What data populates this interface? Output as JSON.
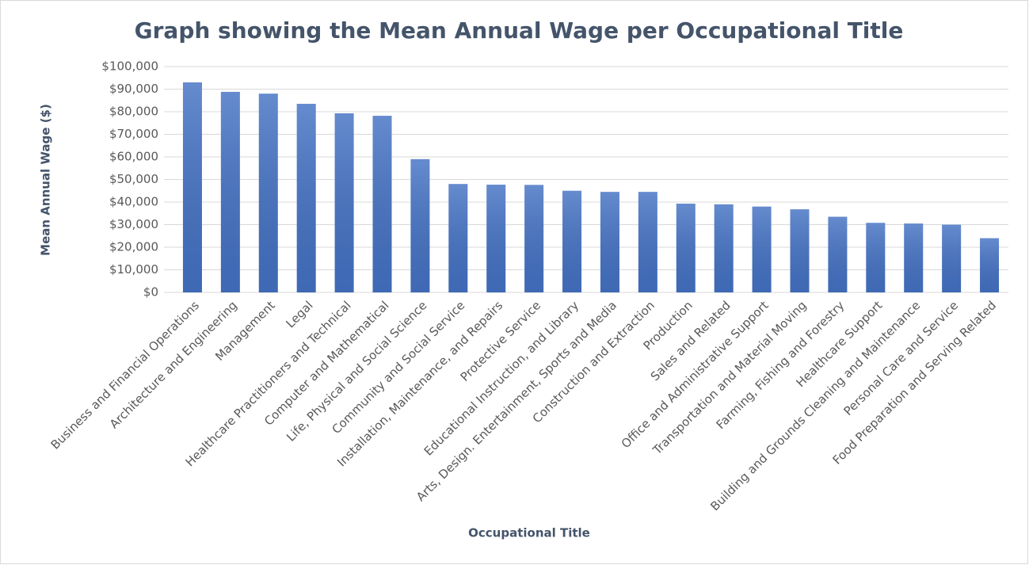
{
  "chart_data": {
    "type": "bar",
    "title": "Graph showing the Mean Annual Wage per Occupational Title",
    "x_label": "Occupational Title",
    "y_label": "Mean Annual Wage ($)",
    "categories": [
      "Business and Financial Operations",
      "Architecture and Engineering",
      "Management",
      "Legal",
      "Healthcare Practitioners and Technical",
      "Computer and Mathematical",
      "Life, Physical and Social Science",
      "Community and Social Service",
      "Installation, Maintenance, and Repairs",
      "Protective Service",
      "Educational Instruction, and Library",
      "Arts, Design. Entertainment, Sports and Media",
      "Construction and Extraction",
      "Production",
      "Sales and Related",
      "Office and Administrative Support",
      "Transportation and Material Moving",
      "Farming, Fishing and Forestry",
      "Healthcare Support",
      "Building and Grounds Cleaning and Maintenance",
      "Personal Care and Service",
      "Food Preparation and Serving Related"
    ],
    "values": [
      93000,
      88800,
      88000,
      83500,
      79300,
      78200,
      59000,
      48000,
      47700,
      47600,
      45000,
      44500,
      44500,
      39300,
      39000,
      38000,
      36800,
      33500,
      30800,
      30500,
      30000,
      24000
    ],
    "color": "#4472c4",
    "ylim": [
      0,
      100000
    ],
    "yticks": [
      {
        "value": 0,
        "label": "$0"
      },
      {
        "value": 10000,
        "label": "$10,000"
      },
      {
        "value": 20000,
        "label": "$20,000"
      },
      {
        "value": 30000,
        "label": "$30,000"
      },
      {
        "value": 40000,
        "label": "$40,000"
      },
      {
        "value": 50000,
        "label": "$50,000"
      },
      {
        "value": 60000,
        "label": "$60,000"
      },
      {
        "value": 70000,
        "label": "$70,000"
      },
      {
        "value": 80000,
        "label": "$80,000"
      },
      {
        "value": 90000,
        "label": "$90,000"
      },
      {
        "value": 100000,
        "label": "$100,000"
      }
    ],
    "grid": true
  }
}
